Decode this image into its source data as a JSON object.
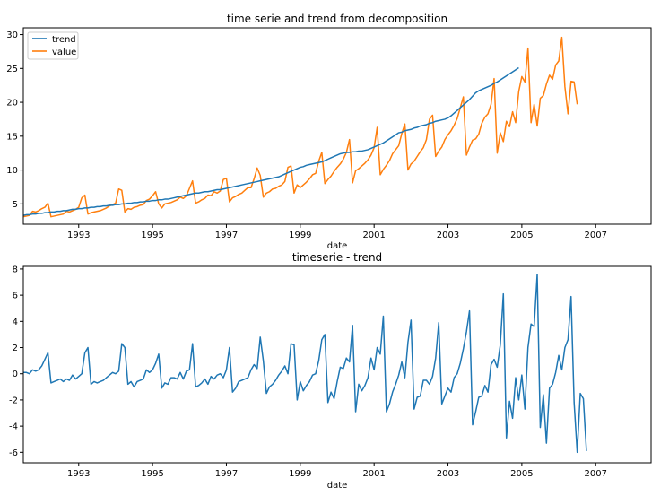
{
  "colors": {
    "trend": "#1f77b4",
    "value": "#ff7f0e",
    "residual": "#1f77b4"
  },
  "chart_data": [
    {
      "type": "line",
      "title": "time serie and trend from decomposition",
      "xlabel": "date",
      "ylabel": "",
      "x_start": 1991.5,
      "x_step": 0.08333,
      "xlim": [
        1991.5,
        2008.5
      ],
      "ylim": [
        2.0,
        31.0
      ],
      "xticks": [
        1993,
        1995,
        1997,
        1999,
        2001,
        2003,
        2005,
        2007
      ],
      "yticks": [
        5,
        10,
        15,
        20,
        25,
        30
      ],
      "legend": {
        "position": "top-left",
        "entries": [
          "trend",
          "value"
        ]
      },
      "grid": false,
      "series": [
        {
          "name": "trend",
          "color_key": "trend",
          "values": [
            3.3,
            3.4,
            3.4,
            3.5,
            3.5,
            3.6,
            3.6,
            3.7,
            3.7,
            3.8,
            3.8,
            3.9,
            3.9,
            4.0,
            4.0,
            4.1,
            4.2,
            4.2,
            4.3,
            4.3,
            4.4,
            4.4,
            4.5,
            4.5,
            4.6,
            4.6,
            4.7,
            4.7,
            4.8,
            4.8,
            4.9,
            4.9,
            5.0,
            5.0,
            5.1,
            5.1,
            5.2,
            5.2,
            5.3,
            5.3,
            5.4,
            5.4,
            5.5,
            5.5,
            5.6,
            5.6,
            5.7,
            5.7,
            5.8,
            5.9,
            6.0,
            6.1,
            6.2,
            6.3,
            6.4,
            6.5,
            6.6,
            6.6,
            6.7,
            6.8,
            6.8,
            6.9,
            7.0,
            7.1,
            7.1,
            7.2,
            7.3,
            7.4,
            7.5,
            7.6,
            7.7,
            7.8,
            7.9,
            8.0,
            8.1,
            8.2,
            8.3,
            8.4,
            8.5,
            8.6,
            8.7,
            8.8,
            8.9,
            9.0,
            9.2,
            9.4,
            9.6,
            9.8,
            10.0,
            10.2,
            10.4,
            10.5,
            10.7,
            10.8,
            10.9,
            11.0,
            11.1,
            11.2,
            11.4,
            11.6,
            11.8,
            12.0,
            12.2,
            12.4,
            12.5,
            12.6,
            12.6,
            12.7,
            12.7,
            12.8,
            12.8,
            12.9,
            13.0,
            13.2,
            13.4,
            13.6,
            13.8,
            14.0,
            14.3,
            14.6,
            14.9,
            15.2,
            15.5,
            15.6,
            15.8,
            15.9,
            16.0,
            16.2,
            16.3,
            16.5,
            16.6,
            16.7,
            16.9,
            17.0,
            17.2,
            17.3,
            17.4,
            17.5,
            17.7,
            18.0,
            18.4,
            18.8,
            19.2,
            19.6,
            20.0,
            20.4,
            20.9,
            21.4,
            21.7,
            21.9,
            22.1,
            22.3,
            22.5,
            22.8,
            23.0,
            23.3,
            23.6,
            23.9,
            24.2,
            24.5,
            24.8,
            25.1
          ]
        },
        {
          "name": "value",
          "color_key": "value",
          "values": [
            3.1,
            3.2,
            3.3,
            3.9,
            3.8,
            4.0,
            4.3,
            4.5,
            5.1,
            3.1,
            3.2,
            3.3,
            3.4,
            3.5,
            3.9,
            3.8,
            4.0,
            4.2,
            4.5,
            5.9,
            6.3,
            3.5,
            3.7,
            3.8,
            3.9,
            4.0,
            4.2,
            4.4,
            4.7,
            4.9,
            5.1,
            7.2,
            7.0,
            3.8,
            4.3,
            4.2,
            4.5,
            4.6,
            4.8,
            4.9,
            5.5,
            5.7,
            6.2,
            6.8,
            5.0,
            4.4,
            5.0,
            5.1,
            5.2,
            5.4,
            5.6,
            6.0,
            5.8,
            6.2,
            7.3,
            8.4,
            5.1,
            5.3,
            5.6,
            5.8,
            6.3,
            6.2,
            6.8,
            6.6,
            6.9,
            8.6,
            8.8,
            5.3,
            5.9,
            6.1,
            6.4,
            6.6,
            7.0,
            7.4,
            7.4,
            8.7,
            10.3,
            9.2,
            6.0,
            6.6,
            6.8,
            7.2,
            7.3,
            7.6,
            7.8,
            8.3,
            10.4,
            10.6,
            6.6,
            7.8,
            7.4,
            7.8,
            8.2,
            8.7,
            9.3,
            9.5,
            11.3,
            12.6,
            8.0,
            8.6,
            9.1,
            9.8,
            10.4,
            10.9,
            11.6,
            12.6,
            14.5,
            8.1,
            9.9,
            10.2,
            10.6,
            11.0,
            11.5,
            12.2,
            13.3,
            16.3,
            9.3,
            10.1,
            10.7,
            11.4,
            12.4,
            13.0,
            13.6,
            15.4,
            16.8,
            10.0,
            10.9,
            11.3,
            12.0,
            12.7,
            13.3,
            14.5,
            17.5,
            18.1,
            12.0,
            12.8,
            13.4,
            14.5,
            15.2,
            15.8,
            16.6,
            17.6,
            19.2,
            20.8,
            12.2,
            13.4,
            14.4,
            14.6,
            15.3,
            16.9,
            17.8,
            18.3,
            19.7,
            23.5,
            12.5,
            15.5,
            14.2,
            17.2,
            16.4,
            18.6,
            17.0,
            21.6,
            23.8,
            23.0,
            28.0,
            17.0,
            19.7,
            16.5,
            20.6,
            21.0,
            22.7,
            24.0,
            23.4,
            25.5,
            26.1,
            29.6,
            22.3,
            18.3,
            23.1,
            23.0,
            19.7
          ]
        }
      ]
    },
    {
      "type": "line",
      "title": "timeserie - trend",
      "xlabel": "date",
      "ylabel": "",
      "x_start": 1991.5,
      "x_step": 0.08333,
      "xlim": [
        1991.5,
        2008.5
      ],
      "ylim": [
        -6.8,
        8.2
      ],
      "xticks": [
        1993,
        1995,
        1997,
        1999,
        2001,
        2003,
        2005,
        2007
      ],
      "yticks": [
        -6,
        -4,
        -2,
        0,
        2,
        4,
        6,
        8
      ],
      "grid": false,
      "series": [
        {
          "name": "timeserie - trend",
          "color_key": "residual",
          "values": [
            0.1,
            0.1,
            0.0,
            0.3,
            0.2,
            0.3,
            0.6,
            1.1,
            1.6,
            -0.7,
            -0.6,
            -0.5,
            -0.4,
            -0.6,
            -0.4,
            -0.5,
            -0.1,
            -0.4,
            -0.2,
            0.0,
            1.6,
            2.0,
            -0.8,
            -0.6,
            -0.7,
            -0.6,
            -0.5,
            -0.3,
            -0.1,
            0.1,
            0.0,
            0.2,
            2.3,
            2.0,
            -0.8,
            -0.6,
            -1.0,
            -0.6,
            -0.5,
            -0.4,
            0.3,
            0.1,
            0.3,
            0.8,
            1.5,
            -1.1,
            -0.7,
            -0.8,
            -0.3,
            -0.3,
            -0.4,
            0.1,
            -0.4,
            0.2,
            0.3,
            2.3,
            -1.0,
            -0.9,
            -0.7,
            -0.4,
            -0.8,
            -0.2,
            -0.4,
            -0.1,
            0.0,
            -0.3,
            0.3,
            2.0,
            -1.4,
            -1.1,
            -0.6,
            -0.5,
            -0.4,
            -0.3,
            0.3,
            0.7,
            0.4,
            2.8,
            1.0,
            -1.5,
            -1.0,
            -0.8,
            -0.5,
            -0.1,
            0.2,
            0.6,
            0.0,
            2.3,
            2.2,
            -2.0,
            -0.6,
            -1.3,
            -0.9,
            -0.6,
            -0.1,
            0.0,
            1.0,
            2.6,
            3.0,
            -2.2,
            -1.4,
            -1.9,
            -0.6,
            0.5,
            0.4,
            1.2,
            0.9,
            3.7,
            -2.9,
            -0.8,
            -1.3,
            -0.9,
            -0.3,
            1.2,
            0.3,
            2.0,
            1.5,
            4.4,
            -2.9,
            -2.3,
            -1.4,
            -0.8,
            -0.1,
            0.9,
            -0.3,
            2.4,
            4.1,
            -2.7,
            -1.8,
            -1.7,
            -0.5,
            -0.5,
            -0.8,
            -0.2,
            1.2,
            3.9,
            -2.3,
            -1.7,
            -1.1,
            -1.4,
            -0.3,
            0.0,
            0.8,
            1.9,
            3.2,
            4.8,
            -3.9,
            -2.9,
            -1.8,
            -1.7,
            -0.9,
            -1.4,
            0.7,
            1.1,
            0.5,
            2.2,
            6.1,
            -4.9,
            -2.1,
            -3.4,
            -0.3,
            -2.0,
            -0.1,
            -2.7,
            2.0,
            3.8,
            3.6,
            7.6,
            -4.1,
            -1.6,
            -5.3,
            -1.1,
            -0.8,
            0.1,
            1.4,
            0.3,
            2.0,
            2.6,
            5.9,
            -2.2,
            -6.0,
            -1.5,
            -1.9,
            -5.9
          ]
        }
      ]
    }
  ]
}
